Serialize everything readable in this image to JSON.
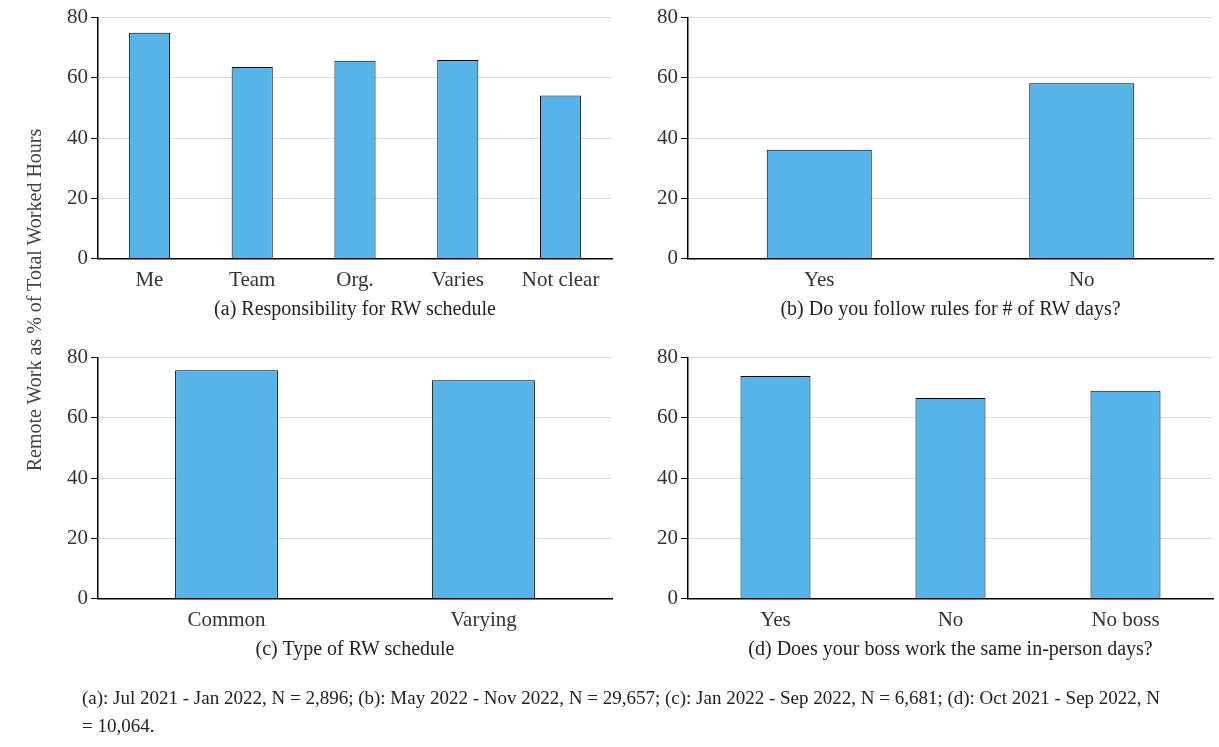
{
  "chart_data": [
    {
      "type": "bar",
      "xlabel": "(a) Responsibility for RW schedule",
      "ylabel": "Remote Work as % of Total Worked Hours",
      "categories": [
        "Me",
        "Team",
        "Org.",
        "Varies",
        "Not clear"
      ],
      "values": [
        75,
        63.6,
        65.7,
        65.9,
        54.2
      ],
      "color": "#56b4e9",
      "ylim": [
        0,
        80
      ],
      "yticks": [
        0,
        20,
        40,
        60,
        80
      ],
      "grid": "y"
    },
    {
      "type": "bar",
      "xlabel": "(b) Do you follow rules for # of RW days?",
      "categories": [
        "Yes",
        "No"
      ],
      "values": [
        36.2,
        58.2
      ],
      "color": "#56b4e9",
      "ylim": [
        0,
        80
      ],
      "yticks": [
        0,
        20,
        40,
        60,
        80
      ],
      "grid": "y"
    },
    {
      "type": "bar",
      "xlabel": "(c) Type of RW schedule",
      "categories": [
        "Common",
        "Varying"
      ],
      "values": [
        75.8,
        72.5
      ],
      "color": "#56b4e9",
      "ylim": [
        0,
        80
      ],
      "yticks": [
        0,
        20,
        40,
        60,
        80
      ],
      "grid": "y"
    },
    {
      "type": "bar",
      "xlabel": "(d) Does your boss work the same in-person days?",
      "categories": [
        "Yes",
        "No",
        "No boss"
      ],
      "values": [
        73.9,
        66.6,
        69.0
      ],
      "color": "#56b4e9",
      "ylim": [
        0,
        80
      ],
      "yticks": [
        0,
        20,
        40,
        60,
        80
      ],
      "grid": "y",
      "annotations": [
        "(a): Jul 2021 - Jan 2022, N = 2,896; (b): May 2022 - Nov 2022, N = 29,657; (c): Jan 2022 - Sep 2022, N = 6,681; (d): Oct 2021 - Sep 2022, N = 10,064."
      ]
    }
  ]
}
